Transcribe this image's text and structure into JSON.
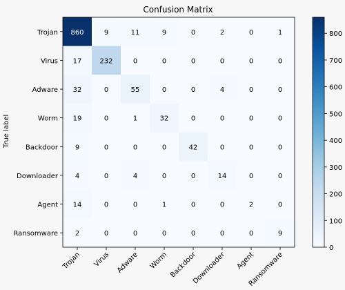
{
  "chart_data": {
    "type": "heatmap",
    "title": "Confusion Matrix",
    "ylabel": "True label",
    "xlabel": "",
    "categories": [
      "Trojan",
      "Virus",
      "Adware",
      "Worm",
      "Backdoor",
      "Downloader",
      "Agent",
      "Ransomware"
    ],
    "matrix": [
      [
        860,
        9,
        11,
        9,
        0,
        2,
        0,
        1
      ],
      [
        17,
        232,
        0,
        0,
        0,
        0,
        0,
        0
      ],
      [
        32,
        0,
        55,
        0,
        0,
        4,
        0,
        0
      ],
      [
        19,
        0,
        1,
        32,
        0,
        0,
        0,
        0
      ],
      [
        9,
        0,
        0,
        0,
        42,
        0,
        0,
        0
      ],
      [
        4,
        0,
        4,
        0,
        0,
        14,
        0,
        0
      ],
      [
        14,
        0,
        0,
        1,
        0,
        0,
        2,
        0
      ],
      [
        2,
        0,
        0,
        0,
        0,
        0,
        0,
        9
      ]
    ],
    "colorbar": {
      "min": 0,
      "max": 860,
      "ticks": [
        "0",
        "100",
        "200",
        "300",
        "400",
        "500",
        "600",
        "700",
        "800"
      ],
      "colormap": "Blues",
      "low_color": "#f7fbff",
      "high_color": "#08306b"
    },
    "grid": false
  }
}
